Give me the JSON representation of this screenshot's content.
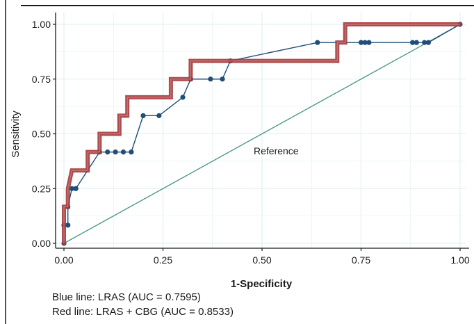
{
  "chart_data": {
    "type": "line",
    "title": "",
    "xlabel": "1-Specificity",
    "ylabel": "Sensitivity",
    "xlim": [
      0,
      1
    ],
    "ylim": [
      0,
      1
    ],
    "x_ticks": [
      "0.00",
      "0.25",
      "0.50",
      "0.75",
      "1.00"
    ],
    "y_ticks": [
      "0.00",
      "0.25",
      "0.50",
      "0.75",
      "1.00"
    ],
    "grid": true,
    "annotation": "Reference",
    "colors": {
      "blue": "#1f4e79",
      "red": "#a5393b",
      "reference": "#4e9a8c",
      "grid": "#dfeef3"
    },
    "series": [
      {
        "key": "blue",
        "x": [
          0,
          0,
          0.01,
          0.01,
          0.02,
          0.03,
          0.03,
          0.09,
          0.11,
          0.13,
          0.15,
          0.17,
          0.2,
          0.24,
          0.3,
          0.32,
          0.37,
          0.4,
          0.42,
          0.64,
          0.75,
          0.76,
          0.77,
          0.88,
          0.89,
          0.91,
          0.92,
          1
        ],
        "y": [
          0,
          0.083,
          0.083,
          0.167,
          0.25,
          0.25,
          0.25,
          0.417,
          0.417,
          0.417,
          0.417,
          0.417,
          0.583,
          0.583,
          0.667,
          0.75,
          0.75,
          0.75,
          0.833,
          0.917,
          0.917,
          0.917,
          0.917,
          0.917,
          0.917,
          0.917,
          0.917,
          1
        ]
      },
      {
        "key": "red",
        "x": [
          0,
          0,
          0,
          0.01,
          0.01,
          0.02,
          0.06,
          0.06,
          0.09,
          0.09,
          0.14,
          0.14,
          0.16,
          0.16,
          0.27,
          0.27,
          0.32,
          0.32,
          0.69,
          0.69,
          0.71,
          0.71,
          1
        ],
        "y": [
          0,
          0.083,
          0.167,
          0.167,
          0.25,
          0.333,
          0.333,
          0.417,
          0.417,
          0.5,
          0.5,
          0.583,
          0.583,
          0.667,
          0.667,
          0.75,
          0.75,
          0.833,
          0.833,
          0.917,
          0.917,
          1,
          1
        ]
      }
    ]
  },
  "captions": {
    "blue": "Blue line: LRAS (AUC = 0.7595)",
    "red": "Red line: LRAS + CBG (AUC = 0.8533)"
  }
}
